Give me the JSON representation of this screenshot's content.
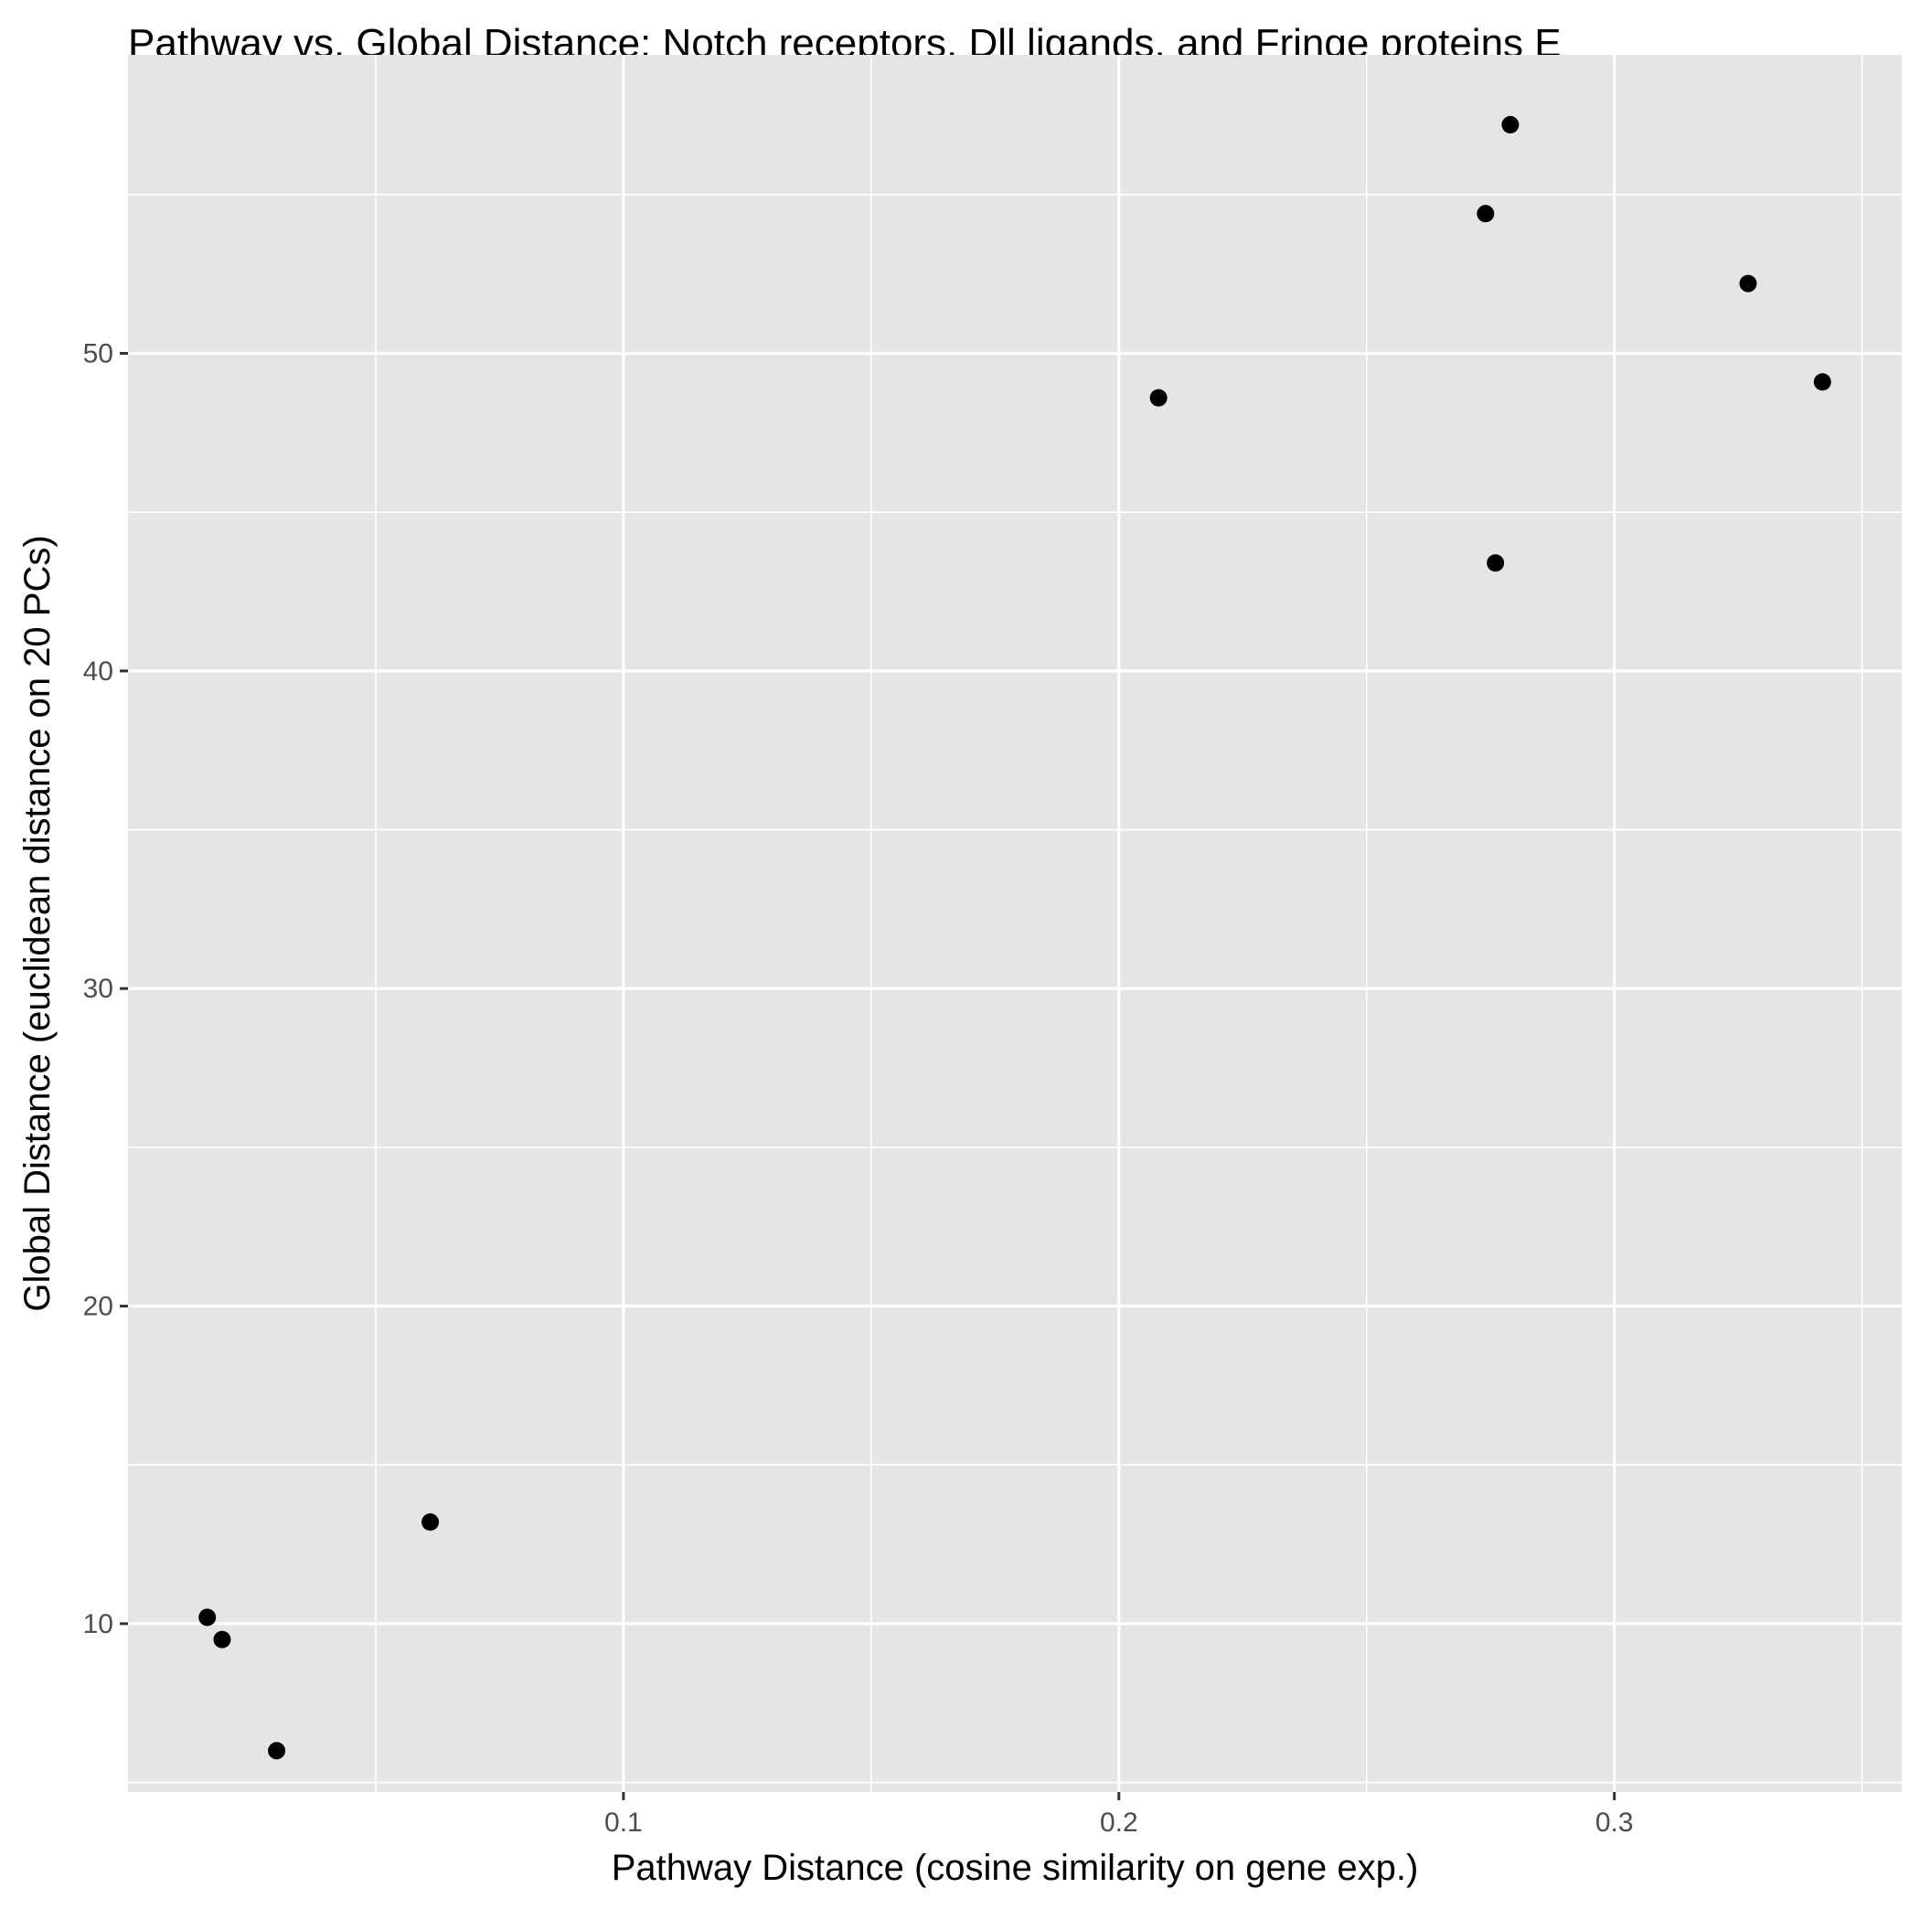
{
  "chart_data": {
    "type": "scatter",
    "title": "Pathway vs. Global Distance: Notch receptors, Dll ligands, and Fringe proteins E",
    "xlabel": "Pathway Distance (cosine similarity on gene exp.)",
    "ylabel": "Global Distance (euclidean distance on 20 PCs)",
    "xlim": [
      0.0,
      0.358
    ],
    "ylim": [
      4.7,
      59.4
    ],
    "x_ticks": [
      0.1,
      0.2,
      0.3
    ],
    "x_tick_labels": [
      "0.1",
      "0.2",
      "0.3"
    ],
    "x_minor_ticks": [
      0.05,
      0.15,
      0.25,
      0.35
    ],
    "y_ticks": [
      10,
      20,
      30,
      40,
      50
    ],
    "y_tick_labels": [
      "10",
      "20",
      "30",
      "40",
      "50"
    ],
    "y_minor_ticks": [
      5,
      15,
      25,
      35,
      45,
      55
    ],
    "grid": true,
    "colors": {
      "panel": "#e5e5e5",
      "grid": "#ffffff",
      "point": "#000000",
      "tick_text": "#4d4d4d"
    },
    "points": [
      {
        "x": 0.016,
        "y": 10.2
      },
      {
        "x": 0.019,
        "y": 9.5
      },
      {
        "x": 0.03,
        "y": 6.0
      },
      {
        "x": 0.061,
        "y": 13.2
      },
      {
        "x": 0.208,
        "y": 48.6
      },
      {
        "x": 0.274,
        "y": 54.4
      },
      {
        "x": 0.276,
        "y": 43.4
      },
      {
        "x": 0.279,
        "y": 57.2
      },
      {
        "x": 0.327,
        "y": 52.2
      },
      {
        "x": 0.342,
        "y": 49.1
      }
    ]
  }
}
